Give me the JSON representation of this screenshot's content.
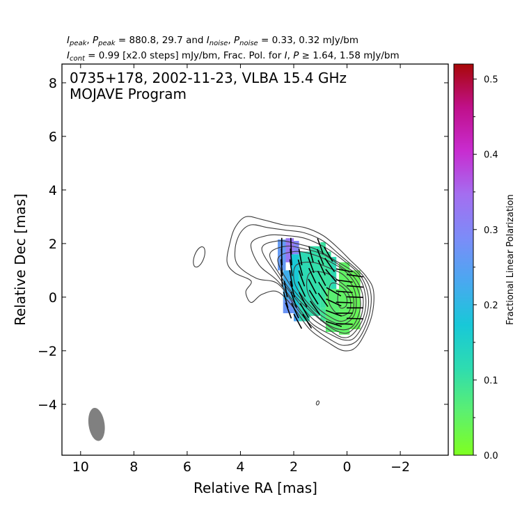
{
  "header": {
    "line1": "I_peak, P_peak = 880.8, 29.7 and I_noise, P_noise = 0.33, 0.32 mJy/bm",
    "line2": "I_cont = 0.99 [x2.0 steps] mJy/bm, Frac. Pol. for I, P ≥ 1.64, 1.58 mJy/bm",
    "peak_values": "880.8, 29.7",
    "noise_values": "0.33, 0.32 mJy/bm",
    "cont_text": " = 0.99 [x2.0 steps] mJy/bm, Frac. Pol. for ",
    "thresh_text": " ≥ 1.64, 1.58 mJy/bm"
  },
  "plot": {
    "source_line": "0735+178, 2002-11-23, VLBA 15.4 GHz",
    "program_line": "MOJAVE Program"
  },
  "chart_data": {
    "type": "heatmap",
    "title": "0735+178, 2002-11-23, VLBA 15.4 GHz",
    "subtitle": "MOJAVE Program",
    "xlabel": "Relative RA [mas]",
    "ylabel": "Relative Dec [mas]",
    "xlim": [
      10.7,
      -3.8
    ],
    "ylim": [
      -5.9,
      8.7
    ],
    "x_ticks": [
      10,
      8,
      6,
      4,
      2,
      0,
      -2
    ],
    "x_tick_labels": [
      "10",
      "8",
      "6",
      "4",
      "2",
      "0",
      "−2"
    ],
    "y_ticks": [
      8,
      6,
      4,
      2,
      0,
      -2,
      -4
    ],
    "y_tick_labels": [
      "8",
      "6",
      "4",
      "2",
      "0",
      "−2",
      "−4"
    ],
    "colorbar": {
      "label": "Fractional Linear Polarization",
      "range": [
        0.0,
        0.52
      ],
      "ticks": [
        0.0,
        0.1,
        0.2,
        0.3,
        0.4,
        0.5
      ],
      "tick_labels": [
        "0.0",
        "0.1",
        "0.2",
        "0.3",
        "0.4",
        "0.5"
      ],
      "colormap": [
        "#7fff20",
        "#5cf070",
        "#2edcb0",
        "#18c8d8",
        "#4aa8f0",
        "#7c8cf8",
        "#a46ef0",
        "#c82cd0",
        "#c0108a",
        "#a80808"
      ]
    },
    "intensity_peak_mJy_per_beam": 880.8,
    "polarized_peak_mJy_per_beam": 29.7,
    "lowest_contour_mJy_per_beam": 0.99,
    "contour_step_factor": 2.0,
    "contours": [
      {
        "level": 1,
        "points": [
          [
            4.2,
            2.6
          ],
          [
            3.8,
            3.0
          ],
          [
            3.2,
            2.9
          ],
          [
            2.4,
            2.7
          ],
          [
            1.6,
            2.6
          ],
          [
            0.9,
            2.3
          ],
          [
            0.3,
            1.8
          ],
          [
            -0.1,
            1.4
          ],
          [
            -0.7,
            0.8
          ],
          [
            -1.0,
            0.2
          ],
          [
            -0.9,
            -0.8
          ],
          [
            -0.4,
            -1.8
          ],
          [
            0.1,
            -2.0
          ],
          [
            0.7,
            -1.7
          ],
          [
            1.4,
            -1.2
          ],
          [
            2.0,
            -0.4
          ],
          [
            2.6,
            0.2
          ],
          [
            3.2,
            0.1
          ],
          [
            3.6,
            -0.2
          ],
          [
            3.8,
            0.2
          ],
          [
            3.6,
            0.6
          ],
          [
            4.2,
            0.9
          ],
          [
            4.5,
            1.3
          ],
          [
            4.4,
            2.0
          ]
        ]
      },
      {
        "level": 2,
        "points": [
          [
            4.0,
            2.4
          ],
          [
            3.6,
            2.7
          ],
          [
            3.0,
            2.6
          ],
          [
            2.3,
            2.5
          ],
          [
            1.6,
            2.4
          ],
          [
            0.9,
            2.1
          ],
          [
            0.3,
            1.6
          ],
          [
            -0.6,
            0.8
          ],
          [
            -0.9,
            0.1
          ],
          [
            -0.8,
            -0.8
          ],
          [
            -0.4,
            -1.6
          ],
          [
            0.1,
            -1.8
          ],
          [
            0.6,
            -1.6
          ],
          [
            1.3,
            -1.1
          ],
          [
            1.9,
            -0.4
          ],
          [
            2.6,
            0.5
          ],
          [
            3.4,
            0.7
          ],
          [
            4.1,
            1.2
          ],
          [
            4.2,
            1.8
          ]
        ]
      },
      {
        "level": 4,
        "points": [
          [
            3.6,
            2.0
          ],
          [
            3.0,
            2.3
          ],
          [
            2.3,
            2.3
          ],
          [
            1.6,
            2.2
          ],
          [
            0.9,
            1.9
          ],
          [
            0.3,
            1.5
          ],
          [
            -0.5,
            0.8
          ],
          [
            -0.8,
            0.0
          ],
          [
            -0.7,
            -0.8
          ],
          [
            -0.3,
            -1.5
          ],
          [
            0.1,
            -1.6
          ],
          [
            0.6,
            -1.4
          ],
          [
            1.3,
            -1.0
          ],
          [
            1.9,
            -0.3
          ],
          [
            2.6,
            0.6
          ],
          [
            3.3,
            1.2
          ]
        ]
      },
      {
        "level": 8,
        "points": [
          [
            3.2,
            1.8
          ],
          [
            2.6,
            2.1
          ],
          [
            1.9,
            2.0
          ],
          [
            1.2,
            1.8
          ],
          [
            0.5,
            1.4
          ],
          [
            -0.4,
            0.8
          ],
          [
            -0.7,
            0.0
          ],
          [
            -0.6,
            -0.8
          ],
          [
            -0.2,
            -1.4
          ],
          [
            0.2,
            -1.5
          ],
          [
            0.7,
            -1.2
          ],
          [
            1.3,
            -0.8
          ],
          [
            1.9,
            -0.1
          ],
          [
            2.6,
            0.8
          ]
        ]
      },
      {
        "level": 16,
        "points": [
          [
            2.9,
            1.6
          ],
          [
            2.3,
            1.9
          ],
          [
            1.6,
            1.8
          ],
          [
            0.9,
            1.6
          ],
          [
            0.3,
            1.2
          ],
          [
            -0.3,
            0.7
          ],
          [
            -0.6,
            0.0
          ],
          [
            -0.5,
            -0.8
          ],
          [
            -0.1,
            -1.3
          ],
          [
            0.3,
            -1.3
          ],
          [
            0.8,
            -1.0
          ],
          [
            1.4,
            -0.5
          ],
          [
            2.0,
            0.1
          ],
          [
            2.5,
            0.8
          ]
        ]
      },
      {
        "level": 32,
        "points": [
          [
            2.6,
            1.4
          ],
          [
            2.0,
            1.7
          ],
          [
            1.3,
            1.6
          ],
          [
            0.6,
            1.3
          ],
          [
            0.0,
            0.9
          ],
          [
            -0.4,
            0.3
          ],
          [
            -0.5,
            -0.4
          ],
          [
            -0.2,
            -1.1
          ],
          [
            0.3,
            -1.2
          ],
          [
            0.9,
            -0.9
          ],
          [
            1.5,
            -0.3
          ],
          [
            2.1,
            0.4
          ]
        ]
      },
      {
        "level": 64,
        "points": [
          [
            1.9,
            1.2
          ],
          [
            1.3,
            1.3
          ],
          [
            0.7,
            1.1
          ],
          [
            0.1,
            0.8
          ],
          [
            -0.3,
            0.2
          ],
          [
            -0.3,
            -0.6
          ],
          [
            0.1,
            -1.0
          ],
          [
            0.6,
            -0.9
          ],
          [
            1.2,
            -0.5
          ],
          [
            1.8,
            0.2
          ],
          [
            2.0,
            0.7
          ]
        ]
      },
      {
        "level": 128,
        "points": [
          [
            1.4,
            0.9
          ],
          [
            0.8,
            0.9
          ],
          [
            0.3,
            0.6
          ],
          [
            -0.2,
            0.1
          ],
          [
            -0.2,
            -0.6
          ],
          [
            0.2,
            -0.9
          ],
          [
            0.7,
            -0.7
          ],
          [
            1.2,
            -0.3
          ],
          [
            1.5,
            0.3
          ]
        ]
      },
      {
        "level": 256,
        "points": [
          [
            0.6,
            0.5
          ],
          [
            0.2,
            0.4
          ],
          [
            -0.1,
            0.0
          ],
          [
            -0.1,
            -0.5
          ],
          [
            0.2,
            -0.7
          ],
          [
            0.5,
            -0.5
          ],
          [
            0.7,
            -0.1
          ]
        ]
      },
      {
        "level": 512,
        "points": [
          [
            0.3,
            0.2
          ],
          [
            0.1,
            0.15
          ],
          [
            0.0,
            -0.1
          ],
          [
            0.05,
            -0.35
          ],
          [
            0.25,
            -0.4
          ],
          [
            0.35,
            -0.15
          ]
        ]
      }
    ],
    "isolated_contours": [
      {
        "cx": 5.55,
        "cy": 1.5,
        "rx": 0.18,
        "ry": 0.4,
        "angle": 20
      },
      {
        "cx": 1.1,
        "cy": -3.95,
        "rx": 0.05,
        "ry": 0.08,
        "angle": 20
      }
    ],
    "frac_pol_blocks": [
      {
        "x0": 2.6,
        "x1": 2.3,
        "y0": 1.0,
        "y1": 2.15,
        "value": 0.26
      },
      {
        "x0": 2.3,
        "x1": 2.0,
        "y0": 1.3,
        "y1": 2.2,
        "value": 0.33
      },
      {
        "x0": 2.0,
        "x1": 1.8,
        "y0": 1.6,
        "y1": 2.1,
        "value": 0.3
      },
      {
        "x0": 2.4,
        "x1": 2.1,
        "y0": -0.1,
        "y1": 1.0,
        "value": 0.22
      },
      {
        "x0": 2.1,
        "x1": 1.8,
        "y0": -0.3,
        "y1": 1.6,
        "value": 0.17
      },
      {
        "x0": 2.4,
        "x1": 2.0,
        "y0": -0.6,
        "y1": -0.1,
        "value": 0.27
      },
      {
        "x0": 2.0,
        "x1": 1.7,
        "y0": -0.9,
        "y1": -0.3,
        "value": 0.24
      },
      {
        "x0": 1.8,
        "x1": 1.4,
        "y0": -0.9,
        "y1": 1.7,
        "value": 0.12
      },
      {
        "x0": 1.4,
        "x1": 1.0,
        "y0": -0.7,
        "y1": 1.9,
        "value": 0.11
      },
      {
        "x0": 1.0,
        "x1": 0.8,
        "y0": -0.4,
        "y1": 2.05,
        "value": 0.1
      },
      {
        "x0": 0.8,
        "x1": 0.6,
        "y0": -0.1,
        "y1": 1.7,
        "value": 0.1
      },
      {
        "x0": 0.6,
        "x1": 0.4,
        "y0": 0.3,
        "y1": 1.5,
        "value": 0.12
      },
      {
        "x0": 0.8,
        "x1": 0.3,
        "y0": -1.3,
        "y1": 0.3,
        "value": 0.06
      },
      {
        "x0": 0.3,
        "x1": -0.1,
        "y0": -1.4,
        "y1": 1.3,
        "value": 0.05
      },
      {
        "x0": -0.1,
        "x1": -0.5,
        "y0": -1.2,
        "y1": 1.0,
        "value": 0.04
      },
      {
        "x0": 1.0,
        "x1": 0.8,
        "y0": -0.9,
        "y1": -0.4,
        "value": 0.09
      }
    ],
    "evpa_vectors": [
      [
        2.45,
        1.9,
        90
      ],
      [
        2.45,
        1.5,
        92
      ],
      [
        2.45,
        1.1,
        95
      ],
      [
        2.45,
        0.7,
        95
      ],
      [
        2.3,
        0.3,
        100
      ],
      [
        2.3,
        -0.1,
        105
      ],
      [
        2.2,
        -0.5,
        110
      ],
      [
        2.1,
        1.9,
        92
      ],
      [
        2.1,
        1.5,
        95
      ],
      [
        2.1,
        1.1,
        98
      ],
      [
        2.1,
        0.7,
        100
      ],
      [
        2.05,
        0.3,
        105
      ],
      [
        2.0,
        -0.1,
        110
      ],
      [
        1.95,
        -0.5,
        115
      ],
      [
        1.85,
        -0.9,
        118
      ],
      [
        1.75,
        1.5,
        100
      ],
      [
        1.75,
        1.1,
        105
      ],
      [
        1.7,
        0.7,
        110
      ],
      [
        1.7,
        0.3,
        115
      ],
      [
        1.65,
        -0.1,
        118
      ],
      [
        1.6,
        -0.5,
        120
      ],
      [
        1.5,
        -0.9,
        122
      ],
      [
        1.35,
        1.6,
        105
      ],
      [
        1.35,
        1.2,
        110
      ],
      [
        1.3,
        0.8,
        115
      ],
      [
        1.3,
        0.4,
        118
      ],
      [
        1.25,
        0.0,
        122
      ],
      [
        1.2,
        -0.4,
        125
      ],
      [
        1.0,
        1.9,
        110
      ],
      [
        1.0,
        1.5,
        112
      ],
      [
        0.95,
        1.1,
        115
      ],
      [
        0.95,
        0.7,
        118
      ],
      [
        0.9,
        0.3,
        122
      ],
      [
        0.9,
        -0.1,
        125
      ],
      [
        0.7,
        1.6,
        120
      ],
      [
        0.65,
        1.2,
        125
      ],
      [
        0.6,
        0.8,
        130
      ],
      [
        0.5,
        0.2,
        150
      ],
      [
        0.5,
        -0.2,
        155
      ],
      [
        0.5,
        -0.6,
        160
      ],
      [
        0.5,
        -1.0,
        162
      ],
      [
        0.1,
        1.0,
        170
      ],
      [
        0.1,
        0.6,
        172
      ],
      [
        0.1,
        0.2,
        175
      ],
      [
        0.1,
        -0.2,
        178
      ],
      [
        0.1,
        -0.6,
        180
      ],
      [
        0.1,
        -1.0,
        178
      ],
      [
        -0.3,
        0.8,
        172
      ],
      [
        -0.3,
        0.4,
        175
      ],
      [
        -0.3,
        0.0,
        178
      ],
      [
        -0.3,
        -0.4,
        180
      ],
      [
        -0.3,
        -0.8,
        178
      ]
    ],
    "beam": {
      "x": 9.4,
      "y": -4.75,
      "major_mas": 1.25,
      "minor_mas": 0.6,
      "pa_deg": -8,
      "color": "#808080"
    }
  }
}
